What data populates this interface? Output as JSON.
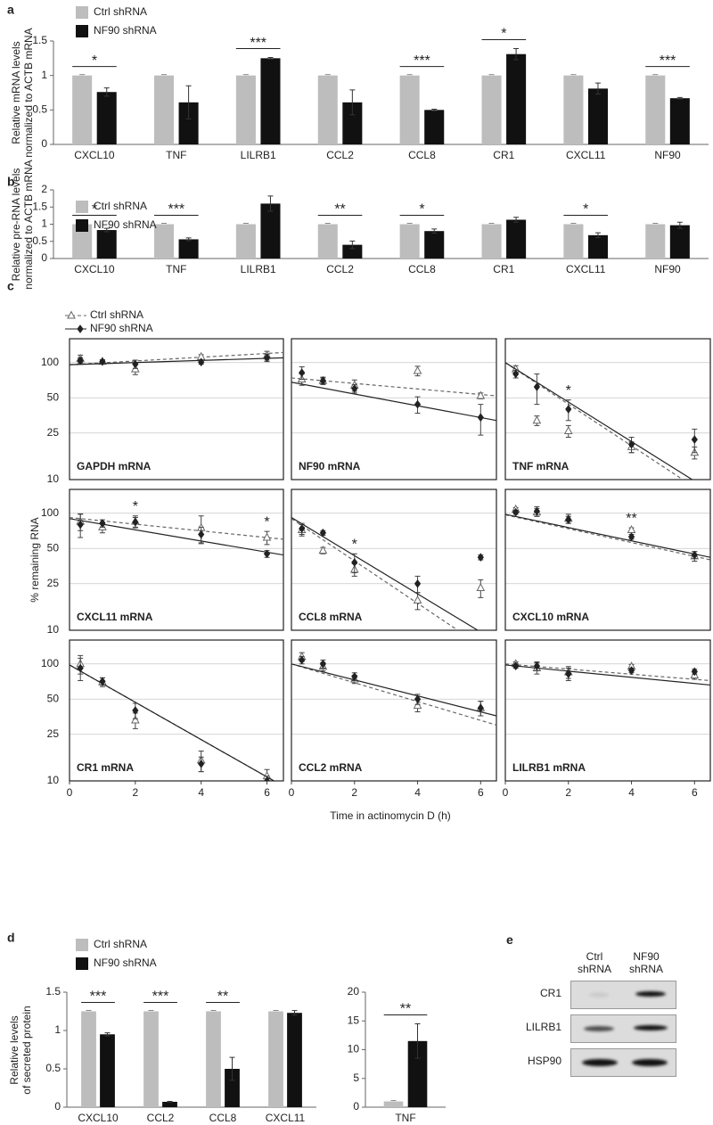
{
  "chart_data": [
    {
      "type": "bar",
      "panel_label": "a",
      "legend": true,
      "y_label": [
        "Relative mRNA levels",
        "normalized to ACTB mRNA"
      ],
      "categories": [
        "CXCL10",
        "TNF",
        "LILRB1",
        "CCL2",
        "CCL8",
        "CR1",
        "CXCL11",
        "NF90"
      ],
      "series": [
        {
          "name": "Ctrl shRNA",
          "color": "#bdbdbd",
          "values": [
            1,
            1,
            1,
            1,
            1,
            1,
            1,
            1
          ]
        },
        {
          "name": "NF90 shRNA",
          "color": "#111111",
          "values": [
            0.76,
            0.61,
            1.25,
            0.61,
            0.5,
            1.31,
            0.81,
            0.67
          ],
          "errors": [
            0.06,
            0.24,
            0.01,
            0.18,
            0.01,
            0.08,
            0.08,
            0.01
          ]
        }
      ],
      "significance": [
        "*",
        null,
        "***",
        null,
        "***",
        "*",
        null,
        "***"
      ],
      "ylim": [
        0,
        1.5
      ],
      "yticks": [
        0,
        0.5,
        1,
        1.5
      ]
    },
    {
      "type": "bar",
      "panel_label": "b",
      "legend": true,
      "y_label": [
        "Relative pre-RNA levels",
        "normalized to ACTB mRNA"
      ],
      "categories": [
        "CXCL10",
        "TNF",
        "LILRB1",
        "CCL2",
        "CCL8",
        "CR1",
        "CXCL11",
        "NF90"
      ],
      "series": [
        {
          "name": "Ctrl shRNA",
          "color": "#bdbdbd",
          "values": [
            1,
            1,
            1,
            1,
            1,
            1,
            1,
            1
          ]
        },
        {
          "name": "NF90 shRNA",
          "color": "#111111",
          "values": [
            0.83,
            0.56,
            1.6,
            0.4,
            0.8,
            1.13,
            0.68,
            0.97
          ],
          "errors": [
            0.05,
            0.04,
            0.22,
            0.11,
            0.06,
            0.07,
            0.07,
            0.09
          ]
        }
      ],
      "significance": [
        "*",
        "***",
        null,
        "**",
        "*",
        null,
        "*",
        null
      ],
      "ylim": [
        0,
        2
      ],
      "yticks": [
        0,
        0.5,
        1,
        1.5,
        2
      ]
    },
    {
      "type": "scatter",
      "panel_label": "c",
      "legend": true,
      "title": "GAPDH mRNA",
      "x": [
        0.33,
        1,
        2,
        4,
        6
      ],
      "xlim": [
        0,
        6.5
      ],
      "ylim": [
        10,
        160
      ],
      "yticks": [
        10,
        25,
        50,
        100
      ],
      "log_y": true,
      "ytick_labels": true,
      "series": [
        {
          "name": "Ctrl shRNA",
          "color": "#666666",
          "marker": "triangle",
          "dash": true,
          "values": [
            108,
            102,
            88,
            112,
            115
          ],
          "errors": [
            8,
            4,
            9,
            5,
            10
          ],
          "fit": [
            96,
            122
          ]
        },
        {
          "name": "NF90 shRNA",
          "color": "#222222",
          "marker": "diamond",
          "dash": false,
          "values": [
            104,
            102,
            97,
            101,
            110
          ],
          "errors": [
            6,
            3,
            8,
            4,
            8
          ],
          "fit": [
            96,
            110
          ]
        }
      ]
    },
    {
      "type": "scatter",
      "title": "NF90 mRNA",
      "x": [
        0.33,
        1,
        2,
        4,
        6
      ],
      "xlim": [
        0,
        6.5
      ],
      "ylim": [
        10,
        160
      ],
      "yticks": [
        10,
        25,
        50,
        100
      ],
      "log_y": true,
      "ytick_labels": false,
      "series": [
        {
          "color": "#666666",
          "marker": "triangle",
          "dash": true,
          "values": [
            72,
            70,
            64,
            85,
            52
          ],
          "errors": [
            8,
            5,
            7,
            8,
            3
          ],
          "fit": [
            74,
            52
          ]
        },
        {
          "color": "#222222",
          "marker": "diamond",
          "dash": false,
          "values": [
            82,
            70,
            60,
            44,
            34
          ],
          "errors": [
            10,
            4,
            5,
            7,
            10
          ],
          "fit": [
            68,
            32
          ]
        }
      ],
      "significance": [
        null,
        null,
        null,
        null,
        null
      ]
    },
    {
      "type": "scatter",
      "title": "TNF mRNA",
      "x": [
        0.33,
        1,
        2,
        4,
        6
      ],
      "xlim": [
        0,
        6.5
      ],
      "ylim": [
        10,
        160
      ],
      "yticks": [
        10,
        25,
        50,
        100
      ],
      "log_y": true,
      "ytick_labels": false,
      "series": [
        {
          "color": "#666666",
          "marker": "triangle",
          "dash": true,
          "values": [
            88,
            32,
            26,
            19,
            17
          ],
          "errors": [
            6,
            3,
            3,
            2,
            2
          ],
          "fit": [
            100,
            7
          ]
        },
        {
          "color": "#222222",
          "marker": "diamond",
          "dash": false,
          "values": [
            80,
            62,
            40,
            20,
            22
          ],
          "errors": [
            6,
            18,
            8,
            3,
            5
          ],
          "fit": [
            100,
            8
          ]
        }
      ],
      "significance": [
        null,
        null,
        "*",
        null,
        null
      ]
    },
    {
      "type": "scatter",
      "title": "CXCL11 mRNA",
      "x": [
        0.33,
        1,
        2,
        4,
        6
      ],
      "xlim": [
        0,
        6.5
      ],
      "ylim": [
        10,
        160
      ],
      "yticks": [
        10,
        25,
        50,
        100
      ],
      "log_y": true,
      "ytick_labels": true,
      "y_label": "% remaining RNA",
      "series": [
        {
          "color": "#666666",
          "marker": "triangle",
          "dash": true,
          "values": [
            85,
            76,
            85,
            75,
            62
          ],
          "errors": [
            14,
            8,
            10,
            20,
            8
          ],
          "fit": [
            92,
            60
          ]
        },
        {
          "color": "#222222",
          "marker": "diamond",
          "dash": false,
          "values": [
            80,
            82,
            84,
            66,
            45
          ],
          "errors": [
            18,
            6,
            8,
            10,
            3
          ],
          "fit": [
            90,
            44
          ]
        }
      ],
      "significance": [
        null,
        null,
        "*",
        null,
        "*"
      ]
    },
    {
      "type": "scatter",
      "title": "CCL8 mRNA",
      "x": [
        0.33,
        1,
        2,
        4,
        6
      ],
      "xlim": [
        0,
        6.5
      ],
      "ylim": [
        10,
        160
      ],
      "yticks": [
        10,
        25,
        50,
        100
      ],
      "log_y": true,
      "ytick_labels": false,
      "series": [
        {
          "color": "#666666",
          "marker": "triangle",
          "dash": true,
          "values": [
            72,
            48,
            33,
            18,
            23
          ],
          "errors": [
            8,
            3,
            4,
            3,
            4
          ],
          "fit": [
            90,
            6
          ]
        },
        {
          "color": "#222222",
          "marker": "diamond",
          "dash": false,
          "values": [
            74,
            68,
            38,
            25,
            42
          ],
          "errors": [
            8,
            3,
            7,
            4,
            2
          ],
          "fit": [
            92,
            8
          ]
        }
      ],
      "significance": [
        null,
        null,
        "*",
        null,
        null
      ]
    },
    {
      "type": "scatter",
      "title": "CXCL10 mRNA",
      "x": [
        0.33,
        1,
        2,
        4,
        6
      ],
      "xlim": [
        0,
        6.5
      ],
      "ylim": [
        10,
        160
      ],
      "yticks": [
        10,
        25,
        50,
        100
      ],
      "log_y": true,
      "ytick_labels": false,
      "series": [
        {
          "color": "#666666",
          "marker": "triangle",
          "dash": true,
          "values": [
            108,
            102,
            90,
            72,
            43
          ],
          "errors": [
            4,
            8,
            8,
            3,
            4
          ],
          "fit": [
            97,
            40
          ]
        },
        {
          "color": "#222222",
          "marker": "diamond",
          "dash": false,
          "values": [
            102,
            104,
            88,
            63,
            44
          ],
          "errors": [
            4,
            10,
            6,
            3,
            3
          ],
          "fit": [
            98,
            42
          ]
        }
      ],
      "significance": [
        null,
        null,
        null,
        "**",
        null
      ]
    },
    {
      "type": "scatter",
      "title": "CR1 mRNA",
      "x": [
        0.33,
        1,
        2,
        4,
        6
      ],
      "xlim": [
        0,
        6.5
      ],
      "ylim": [
        10,
        160
      ],
      "yticks": [
        10,
        25,
        50,
        100
      ],
      "log_y": true,
      "ytick_labels": true,
      "xticks": [
        0,
        2,
        4,
        6
      ],
      "series": [
        {
          "color": "#666666",
          "marker": "triangle",
          "dash": true,
          "values": [
            100,
            70,
            33,
            15,
            11
          ],
          "errors": [
            18,
            6,
            5,
            3,
            1.5
          ],
          "fit": [
            98,
            9
          ]
        },
        {
          "color": "#222222",
          "marker": "diamond",
          "dash": false,
          "values": [
            92,
            71,
            40,
            14,
            10
          ],
          "errors": [
            20,
            5,
            6,
            2,
            1
          ],
          "fit": [
            98,
            9
          ]
        }
      ],
      "significance": [
        null,
        null,
        null,
        null,
        null
      ]
    },
    {
      "type": "scatter",
      "title": "CCL2 mRNA",
      "x": [
        0.33,
        1,
        2,
        4,
        6
      ],
      "xlim": [
        0,
        6.5
      ],
      "ylim": [
        10,
        160
      ],
      "yticks": [
        10,
        25,
        50,
        100
      ],
      "log_y": true,
      "ytick_labels": false,
      "xticks": [
        0,
        2,
        4,
        6
      ],
      "x_label": "Time in actinomycin D (h)",
      "series": [
        {
          "color": "#666666",
          "marker": "triangle",
          "dash": true,
          "values": [
            115,
            95,
            74,
            44,
            42
          ],
          "errors": [
            10,
            8,
            6,
            5,
            6
          ],
          "fit": [
            100,
            30
          ]
        },
        {
          "color": "#222222",
          "marker": "diamond",
          "dash": false,
          "values": [
            108,
            100,
            78,
            50,
            42
          ],
          "errors": [
            8,
            8,
            6,
            5,
            6
          ],
          "fit": [
            100,
            36
          ]
        }
      ],
      "significance": [
        null,
        null,
        null,
        null,
        null
      ]
    },
    {
      "type": "scatter",
      "title": "LILRB1 mRNA",
      "x": [
        0.33,
        1,
        2,
        4,
        6
      ],
      "xlim": [
        0,
        6.5
      ],
      "ylim": [
        10,
        160
      ],
      "yticks": [
        10,
        25,
        50,
        100
      ],
      "log_y": true,
      "ytick_labels": false,
      "xticks": [
        0,
        2,
        4,
        6
      ],
      "series": [
        {
          "color": "#666666",
          "marker": "triangle",
          "dash": true,
          "values": [
            100,
            92,
            85,
            95,
            80
          ],
          "errors": [
            4,
            10,
            10,
            4,
            6
          ],
          "fit": [
            100,
            72
          ]
        },
        {
          "color": "#222222",
          "marker": "diamond",
          "dash": false,
          "values": [
            96,
            96,
            82,
            88,
            86
          ],
          "errors": [
            4,
            8,
            10,
            4,
            4
          ],
          "fit": [
            98,
            66
          ]
        }
      ],
      "significance": [
        null,
        null,
        null,
        null,
        null
      ]
    },
    {
      "type": "bar",
      "panel_label": "d",
      "legend": true,
      "y_label": [
        "Relative levels",
        "of secreted protein"
      ],
      "categories": [
        "CXCL10",
        "CCL2",
        "CCL8",
        "CXCL11"
      ],
      "series": [
        {
          "name": "Ctrl shRNA",
          "color": "#bdbdbd",
          "values": [
            1.25,
            1.25,
            1.25,
            1.25
          ]
        },
        {
          "name": "NF90 shRNA",
          "color": "#111111",
          "values": [
            0.95,
            0.07,
            0.5,
            1.23
          ],
          "errors": [
            0.02,
            0.005,
            0.15,
            0.03
          ]
        }
      ],
      "significance": [
        "***",
        "***",
        "**",
        null
      ],
      "ylim": [
        0,
        1.5
      ],
      "yticks": [
        0,
        0.5,
        1,
        1.5
      ]
    },
    {
      "type": "bar",
      "legend": false,
      "categories": [
        "TNF"
      ],
      "series": [
        {
          "color": "#bdbdbd",
          "values": [
            1
          ]
        },
        {
          "color": "#111111",
          "values": [
            11.5
          ],
          "errors": [
            3
          ]
        }
      ],
      "significance": [
        "**"
      ],
      "ylim": [
        0,
        20
      ],
      "yticks": [
        0,
        5,
        10,
        15,
        20
      ]
    }
  ],
  "blot": {
    "panel_label": "e",
    "columns": [
      "Ctrl shRNA",
      "NF90 shRNA"
    ],
    "rows": [
      "CR1",
      "LILRB1",
      "HSP90"
    ]
  }
}
